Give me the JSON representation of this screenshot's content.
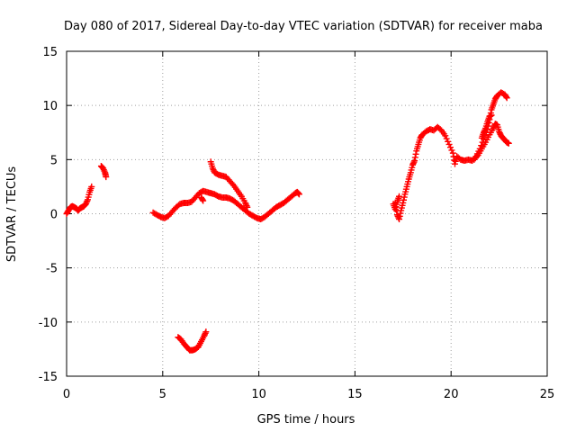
{
  "chart_data": {
    "type": "scatter",
    "title": "Day 080 of 2017, Sidereal Day-to-day VTEC variation (SDTVAR) for receiver maba",
    "xlabel": "GPS time / hours",
    "ylabel": "SDTVAR / TECUs",
    "xlim": [
      0,
      25
    ],
    "ylim": [
      -15,
      15
    ],
    "x_ticks": [
      0,
      5,
      10,
      15,
      20,
      25
    ],
    "y_ticks": [
      -15,
      -10,
      -5,
      0,
      5,
      10,
      15
    ],
    "x_tick_labels": [
      "0",
      "5",
      "10",
      "15",
      "20",
      "25"
    ],
    "y_tick_labels": [
      "-15",
      "-10",
      "-5",
      "0",
      "5",
      "10",
      "15"
    ],
    "grid": true,
    "marker": "plus",
    "color": "#ff0000",
    "segments": [
      [
        [
          0.0,
          0.0
        ],
        [
          0.1,
          0.3
        ],
        [
          0.2,
          0.6
        ],
        [
          0.3,
          0.7
        ],
        [
          0.4,
          0.6
        ],
        [
          0.5,
          0.5
        ],
        [
          0.6,
          0.3
        ],
        [
          0.7,
          0.5
        ],
        [
          0.8,
          0.6
        ],
        [
          0.9,
          0.7
        ],
        [
          1.0,
          0.9
        ],
        [
          1.1,
          1.3
        ],
        [
          1.2,
          2.0
        ],
        [
          1.3,
          2.5
        ]
      ],
      [
        [
          1.8,
          4.4
        ],
        [
          1.9,
          4.2
        ],
        [
          2.0,
          3.8
        ],
        [
          2.05,
          3.4
        ]
      ],
      [
        [
          4.5,
          0.1
        ],
        [
          4.7,
          -0.1
        ],
        [
          4.9,
          -0.3
        ],
        [
          5.1,
          -0.4
        ],
        [
          5.3,
          -0.2
        ],
        [
          5.5,
          0.2
        ],
        [
          5.7,
          0.6
        ],
        [
          5.9,
          0.9
        ],
        [
          6.1,
          1.0
        ],
        [
          6.3,
          1.0
        ],
        [
          6.5,
          1.1
        ],
        [
          6.7,
          1.5
        ],
        [
          6.9,
          1.9
        ],
        [
          7.1,
          2.1
        ],
        [
          7.3,
          2.0
        ],
        [
          7.5,
          1.9
        ],
        [
          7.7,
          1.8
        ],
        [
          7.9,
          1.6
        ],
        [
          8.1,
          1.5
        ],
        [
          8.3,
          1.5
        ],
        [
          8.5,
          1.4
        ],
        [
          8.7,
          1.2
        ],
        [
          8.9,
          0.9
        ],
        [
          9.1,
          0.6
        ],
        [
          9.3,
          0.3
        ],
        [
          9.5,
          0.0
        ],
        [
          9.7,
          -0.2
        ],
        [
          9.9,
          -0.4
        ],
        [
          10.1,
          -0.5
        ],
        [
          10.3,
          -0.3
        ],
        [
          10.5,
          0.0
        ],
        [
          10.7,
          0.3
        ],
        [
          10.9,
          0.6
        ],
        [
          11.1,
          0.8
        ],
        [
          11.3,
          1.0
        ],
        [
          11.5,
          1.3
        ],
        [
          11.7,
          1.6
        ],
        [
          11.9,
          1.9
        ],
        [
          12.0,
          2.0
        ],
        [
          12.1,
          1.8
        ]
      ],
      [
        [
          7.0,
          1.5
        ],
        [
          7.1,
          1.2
        ]
      ],
      [
        [
          7.5,
          4.8
        ],
        [
          7.6,
          4.2
        ],
        [
          7.7,
          3.8
        ],
        [
          7.9,
          3.6
        ],
        [
          8.1,
          3.5
        ],
        [
          8.3,
          3.4
        ],
        [
          8.5,
          3.0
        ],
        [
          8.7,
          2.6
        ],
        [
          8.9,
          2.1
        ],
        [
          9.1,
          1.6
        ],
        [
          9.3,
          1.0
        ],
        [
          9.4,
          0.6
        ]
      ],
      [
        [
          5.8,
          -11.4
        ],
        [
          5.95,
          -11.6
        ],
        [
          6.1,
          -12.0
        ],
        [
          6.25,
          -12.3
        ],
        [
          6.4,
          -12.6
        ],
        [
          6.55,
          -12.6
        ],
        [
          6.7,
          -12.5
        ],
        [
          6.85,
          -12.3
        ],
        [
          7.0,
          -11.8
        ],
        [
          7.15,
          -11.3
        ],
        [
          7.25,
          -10.9
        ]
      ],
      [
        [
          17.1,
          1.0
        ],
        [
          17.2,
          -0.1
        ],
        [
          17.3,
          -0.5
        ],
        [
          17.4,
          0.3
        ],
        [
          17.5,
          1.0
        ],
        [
          17.6,
          1.8
        ],
        [
          17.7,
          2.5
        ],
        [
          17.8,
          3.2
        ],
        [
          17.9,
          3.8
        ],
        [
          18.0,
          4.5
        ],
        [
          18.1,
          4.9
        ],
        [
          18.2,
          5.8
        ],
        [
          18.3,
          6.4
        ],
        [
          18.4,
          7.0
        ],
        [
          18.5,
          7.3
        ],
        [
          18.7,
          7.6
        ],
        [
          18.9,
          7.8
        ],
        [
          19.1,
          7.7
        ],
        [
          19.3,
          8.0
        ],
        [
          19.5,
          7.7
        ],
        [
          19.7,
          7.2
        ],
        [
          19.9,
          6.4
        ],
        [
          20.1,
          5.6
        ],
        [
          20.2,
          4.6
        ],
        [
          20.3,
          5.3
        ],
        [
          20.5,
          5.0
        ],
        [
          20.7,
          4.9
        ],
        [
          20.9,
          5.0
        ],
        [
          21.1,
          4.9
        ],
        [
          21.3,
          5.3
        ],
        [
          21.5,
          6.0
        ],
        [
          21.7,
          6.9
        ],
        [
          21.9,
          7.8
        ],
        [
          22.0,
          8.7
        ],
        [
          22.1,
          9.6
        ],
        [
          22.2,
          10.1
        ],
        [
          22.3,
          10.6
        ],
        [
          22.4,
          10.9
        ],
        [
          22.6,
          11.2
        ],
        [
          22.8,
          11.0
        ],
        [
          22.9,
          10.7
        ]
      ],
      [
        [
          17.0,
          0.9
        ],
        [
          17.1,
          0.4
        ],
        [
          17.2,
          1.1
        ],
        [
          17.3,
          1.6
        ]
      ],
      [
        [
          21.2,
          5.0
        ],
        [
          21.4,
          5.4
        ],
        [
          21.6,
          6.0
        ],
        [
          21.8,
          6.6
        ],
        [
          22.0,
          7.3
        ],
        [
          22.2,
          7.9
        ],
        [
          22.3,
          8.3
        ],
        [
          22.4,
          8.2
        ],
        [
          22.5,
          7.6
        ],
        [
          22.6,
          7.2
        ],
        [
          22.7,
          7.0
        ],
        [
          22.8,
          6.8
        ],
        [
          22.9,
          6.6
        ],
        [
          23.0,
          6.5
        ]
      ],
      [
        [
          21.6,
          7.0
        ],
        [
          21.7,
          7.5
        ],
        [
          21.8,
          7.9
        ],
        [
          21.9,
          8.5
        ],
        [
          22.0,
          9.0
        ],
        [
          22.1,
          9.1
        ]
      ]
    ]
  }
}
